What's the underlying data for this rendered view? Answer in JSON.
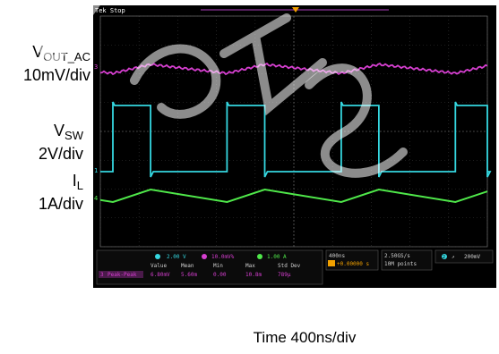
{
  "channel_labels": {
    "vout": {
      "main": "V",
      "sub": "OUT_AC",
      "scale": "10mV/div"
    },
    "vsw": {
      "main": "V",
      "sub": "SW",
      "scale": "2V/div"
    },
    "il": {
      "main": "I",
      "sub": "L",
      "scale": "1A/div"
    }
  },
  "time_label": "Time 400ns/div",
  "scope": {
    "status": "Tek Stop",
    "ch_markers": [
      "3",
      "1",
      "4"
    ],
    "ch_settings": [
      {
        "ch": "2",
        "text": "2.00 V",
        "color": "#35d7e0"
      },
      {
        "ch": "3",
        "text": "10.0mV%",
        "color": "#d63fd0"
      },
      {
        "ch": "4",
        "text": "1.00 A",
        "color": "#4fe84a"
      }
    ],
    "timebase": "400ns",
    "trigger_pos": "+0.00000 s",
    "sample_rate": "2.50GS/s",
    "record_length": "10M points",
    "trigger": "200mV",
    "trigger_ch": "2",
    "meas_headers": [
      "Value",
      "Mean",
      "Min",
      "Max",
      "Std Dev"
    ],
    "meas_row": {
      "ch": "3",
      "name": "Peak-Peak",
      "values": [
        "6.80mV",
        "5.60m",
        "0.00",
        "10.8m",
        "789µ"
      ]
    }
  },
  "chart_data": {
    "type": "line",
    "x_unit": "div",
    "xlim": [
      0,
      10
    ],
    "colors": {
      "vout": "#d63fd0",
      "vsw": "#35d7e0",
      "il": "#4fe84a"
    },
    "series": [
      {
        "name": "VOUT_AC",
        "scale": "10mV/div",
        "period_div": 2.95,
        "high_frac": 0.33,
        "pp_mV": 6.8
      },
      {
        "name": "VSW",
        "scale": "2V/div",
        "period_div": 2.95,
        "high_frac": 0.33
      },
      {
        "name": "IL",
        "scale": "1A/div",
        "period_div": 2.95,
        "high_frac": 0.33
      }
    ]
  }
}
